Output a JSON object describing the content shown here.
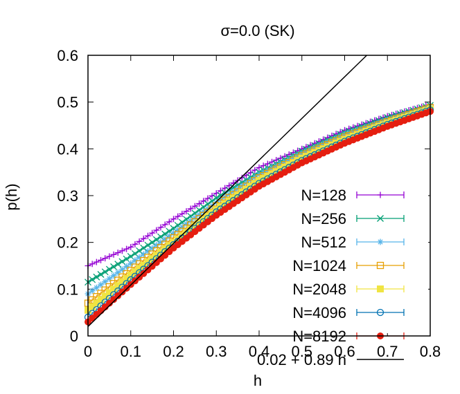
{
  "chart_data": {
    "type": "scatter",
    "title": "σ=0.0 (SK)",
    "xlabel": "h",
    "ylabel": "p(h)",
    "xlim": [
      0,
      0.8
    ],
    "ylim": [
      0,
      0.6
    ],
    "xticks": [
      "0",
      "0.1",
      "0.2",
      "0.3",
      "0.4",
      "0.5",
      "0.6",
      "0.7",
      "0.8"
    ],
    "yticks": [
      "0",
      "0.1",
      "0.2",
      "0.3",
      "0.4",
      "0.5",
      "0.6"
    ],
    "grid": false,
    "legend_position": "bottom-right",
    "series": [
      {
        "name": "N=128",
        "color": "#9400d3",
        "marker": "plus",
        "x": [
          0,
          0.1,
          0.2,
          0.3,
          0.4,
          0.5,
          0.6,
          0.7,
          0.8
        ],
        "y": [
          0.15,
          0.19,
          0.25,
          0.305,
          0.36,
          0.4,
          0.44,
          0.47,
          0.495
        ]
      },
      {
        "name": "N=256",
        "color": "#009e73",
        "marker": "cross",
        "x": [
          0,
          0.1,
          0.2,
          0.3,
          0.4,
          0.5,
          0.6,
          0.7,
          0.8
        ],
        "y": [
          0.115,
          0.17,
          0.23,
          0.295,
          0.35,
          0.395,
          0.435,
          0.467,
          0.493
        ]
      },
      {
        "name": "N=512",
        "color": "#56b4e9",
        "marker": "star",
        "x": [
          0,
          0.1,
          0.2,
          0.3,
          0.4,
          0.5,
          0.6,
          0.7,
          0.8
        ],
        "y": [
          0.09,
          0.155,
          0.22,
          0.285,
          0.345,
          0.39,
          0.43,
          0.462,
          0.49
        ]
      },
      {
        "name": "N=1024",
        "color": "#e69f00",
        "marker": "square",
        "x": [
          0,
          0.1,
          0.2,
          0.3,
          0.4,
          0.5,
          0.6,
          0.7,
          0.8
        ],
        "y": [
          0.07,
          0.14,
          0.21,
          0.278,
          0.338,
          0.385,
          0.425,
          0.458,
          0.488
        ]
      },
      {
        "name": "N=2048",
        "color": "#f0e442",
        "marker": "filled-square",
        "x": [
          0,
          0.1,
          0.2,
          0.3,
          0.4,
          0.5,
          0.6,
          0.7,
          0.8
        ],
        "y": [
          0.055,
          0.13,
          0.2,
          0.27,
          0.332,
          0.38,
          0.42,
          0.455,
          0.485
        ]
      },
      {
        "name": "N=4096",
        "color": "#0072b2",
        "marker": "circle",
        "x": [
          0,
          0.1,
          0.2,
          0.3,
          0.4,
          0.5,
          0.6,
          0.7,
          0.8
        ],
        "y": [
          0.04,
          0.12,
          0.195,
          0.265,
          0.326,
          0.375,
          0.416,
          0.452,
          0.483
        ]
      },
      {
        "name": "N=8192",
        "color": "#e51e10",
        "marker": "filled-circle",
        "x": [
          0,
          0.1,
          0.2,
          0.3,
          0.4,
          0.5,
          0.6,
          0.7,
          0.8
        ],
        "y": [
          0.03,
          0.11,
          0.188,
          0.258,
          0.32,
          0.37,
          0.412,
          0.448,
          0.48
        ]
      }
    ],
    "fit_line": {
      "name": "0.02 + 0.89 h",
      "color": "#000000",
      "intercept": 0.02,
      "slope": 0.89
    }
  }
}
